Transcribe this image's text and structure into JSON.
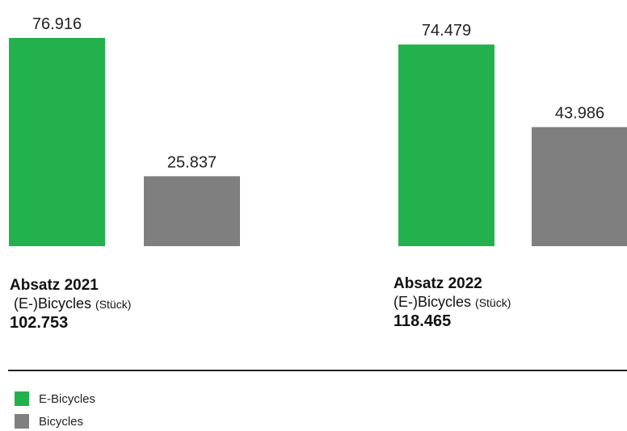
{
  "colors": {
    "e_bicycles": "#22b14c",
    "bicycles": "#7f7f7f"
  },
  "chart_data": {
    "type": "bar",
    "categories": [
      "Absatz 2021",
      "Absatz 2022"
    ],
    "series": [
      {
        "name": "E-Bicycles",
        "values": [
          76916,
          74479
        ],
        "labels": [
          "76.916",
          "74.479"
        ]
      },
      {
        "name": "Bicycles",
        "values": [
          25837,
          43986
        ],
        "labels": [
          "25.837",
          "43.986"
        ]
      }
    ],
    "ylim": [
      0,
      76916
    ],
    "grid": false,
    "legend_position": "bottom-left"
  },
  "groups": [
    {
      "title": "Absatz 2021",
      "subtitle": "(E-)Bicycles",
      "unit": "(Stück)",
      "total": "102.753"
    },
    {
      "title": "Absatz 2022",
      "subtitle": "(E-)Bicycles",
      "unit": "(Stück)",
      "total": "118.465"
    }
  ],
  "legend": [
    {
      "label": "E-Bicycles",
      "color_key": "e_bicycles"
    },
    {
      "label": "Bicycles",
      "color_key": "bicycles"
    }
  ]
}
